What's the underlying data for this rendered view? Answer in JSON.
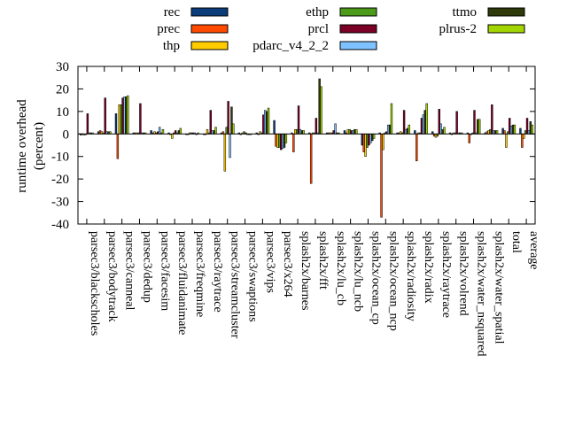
{
  "chart_data": {
    "type": "bar",
    "ylabel_line1": "runtime overhead",
    "ylabel_line2": "(percent)",
    "ylim": [
      -40,
      30
    ],
    "yticks": [
      -40,
      -30,
      -20,
      -10,
      0,
      10,
      20,
      30
    ],
    "legend_position": "top",
    "grid": false,
    "categories": [
      "parsec3/blackscholes",
      "parsec3/bodytrack",
      "parsec3/canneal",
      "parsec3/dedup",
      "parsec3/facesim",
      "parsec3/fluidanimate",
      "parsec3/freqmine",
      "parsec3/raytrace",
      "parsec3/streamcluster",
      "parsec3/swaptions",
      "parsec3/vips",
      "parsec3/x264",
      "splash2x/barnes",
      "splash2x/fft",
      "splash2x/lu_cb",
      "splash2x/lu_ncb",
      "splash2x/ocean_cp",
      "splash2x/ocean_ncp",
      "splash2x/radiosity",
      "splash2x/radix",
      "splash2x/raytrace",
      "splash2x/volrend",
      "splash2x/water_nsquared",
      "splash2x/water_spatial",
      "total",
      "average"
    ],
    "series": [
      {
        "name": "rec",
        "color": "#0a3d7a",
        "values": [
          -0.5,
          1.0,
          9.0,
          0.5,
          1.5,
          0.5,
          0.0,
          0.0,
          0.5,
          0.5,
          0.5,
          6.0,
          0.5,
          0.5,
          0.5,
          1.5,
          -5.0,
          0.5,
          0.5,
          1.5,
          1.0,
          0.5,
          0.5,
          0.5,
          2.5,
          2.5
        ]
      },
      {
        "name": "prec",
        "color": "#ff4a00",
        "values": [
          0.0,
          1.5,
          -11.0,
          0.5,
          0.5,
          0.0,
          0.0,
          0.0,
          1.0,
          0.0,
          0.0,
          -5.5,
          -8.0,
          -22.0,
          0.5,
          0.5,
          -8.0,
          -37.0,
          0.5,
          -12.0,
          -1.0,
          0.0,
          -4.0,
          1.0,
          1.5,
          -6.0
        ]
      },
      {
        "name": "thp",
        "color": "#ffcc00",
        "values": [
          -0.5,
          1.0,
          13.0,
          0.5,
          1.0,
          -2.0,
          0.5,
          2.0,
          -16.5,
          0.5,
          1.0,
          -6.0,
          2.0,
          0.5,
          0.5,
          2.0,
          -10.0,
          -7.0,
          1.0,
          0.5,
          -1.5,
          0.5,
          0.0,
          1.5,
          -6.0,
          -2.0
        ]
      },
      {
        "name": "ethp",
        "color": "#4c9a1a",
        "values": [
          0.0,
          0.5,
          13.0,
          0.5,
          0.5,
          0.5,
          0.5,
          0.5,
          3.0,
          1.0,
          0.5,
          -6.0,
          2.0,
          0.5,
          0.5,
          2.0,
          -6.0,
          0.5,
          0.5,
          0.5,
          -1.0,
          0.5,
          0.5,
          2.0,
          1.0,
          1.5
        ]
      },
      {
        "name": "prcl",
        "color": "#7a0026",
        "values": [
          9.0,
          16.0,
          16.0,
          13.5,
          1.0,
          1.5,
          0.5,
          10.5,
          14.5,
          0.5,
          8.5,
          -7.0,
          12.5,
          7.0,
          1.5,
          1.5,
          -5.0,
          1.0,
          10.5,
          7.0,
          11.0,
          10.0,
          10.5,
          13.0,
          7.0,
          7.0
        ]
      },
      {
        "name": "pdarc_v4_2_2",
        "color": "#7ec3ff",
        "values": [
          0.5,
          1.0,
          16.5,
          0.5,
          3.0,
          0.5,
          0.5,
          1.5,
          -10.5,
          0.0,
          10.5,
          -6.5,
          2.0,
          0.5,
          4.5,
          1.5,
          -4.0,
          4.0,
          2.0,
          8.5,
          4.5,
          0.5,
          0.5,
          1.5,
          3.5,
          1.5
        ]
      },
      {
        "name": "ttmo",
        "color": "#2f3a0a",
        "values": [
          0.5,
          1.0,
          16.5,
          0.5,
          0.5,
          1.5,
          0.0,
          1.5,
          12.0,
          0.0,
          10.0,
          -6.0,
          1.5,
          24.5,
          0.5,
          2.0,
          -3.0,
          4.0,
          2.5,
          10.5,
          2.0,
          0.5,
          6.5,
          1.5,
          4.0,
          5.5
        ]
      },
      {
        "name": "plrus-2",
        "color": "#a3d600",
        "values": [
          0.5,
          1.0,
          17.0,
          0.5,
          2.0,
          2.5,
          0.5,
          3.0,
          4.5,
          0.0,
          11.5,
          -4.0,
          1.5,
          21.0,
          0.5,
          2.0,
          -2.0,
          13.5,
          4.0,
          13.5,
          3.0,
          0.5,
          6.5,
          1.5,
          4.0,
          4.0
        ]
      }
    ]
  }
}
